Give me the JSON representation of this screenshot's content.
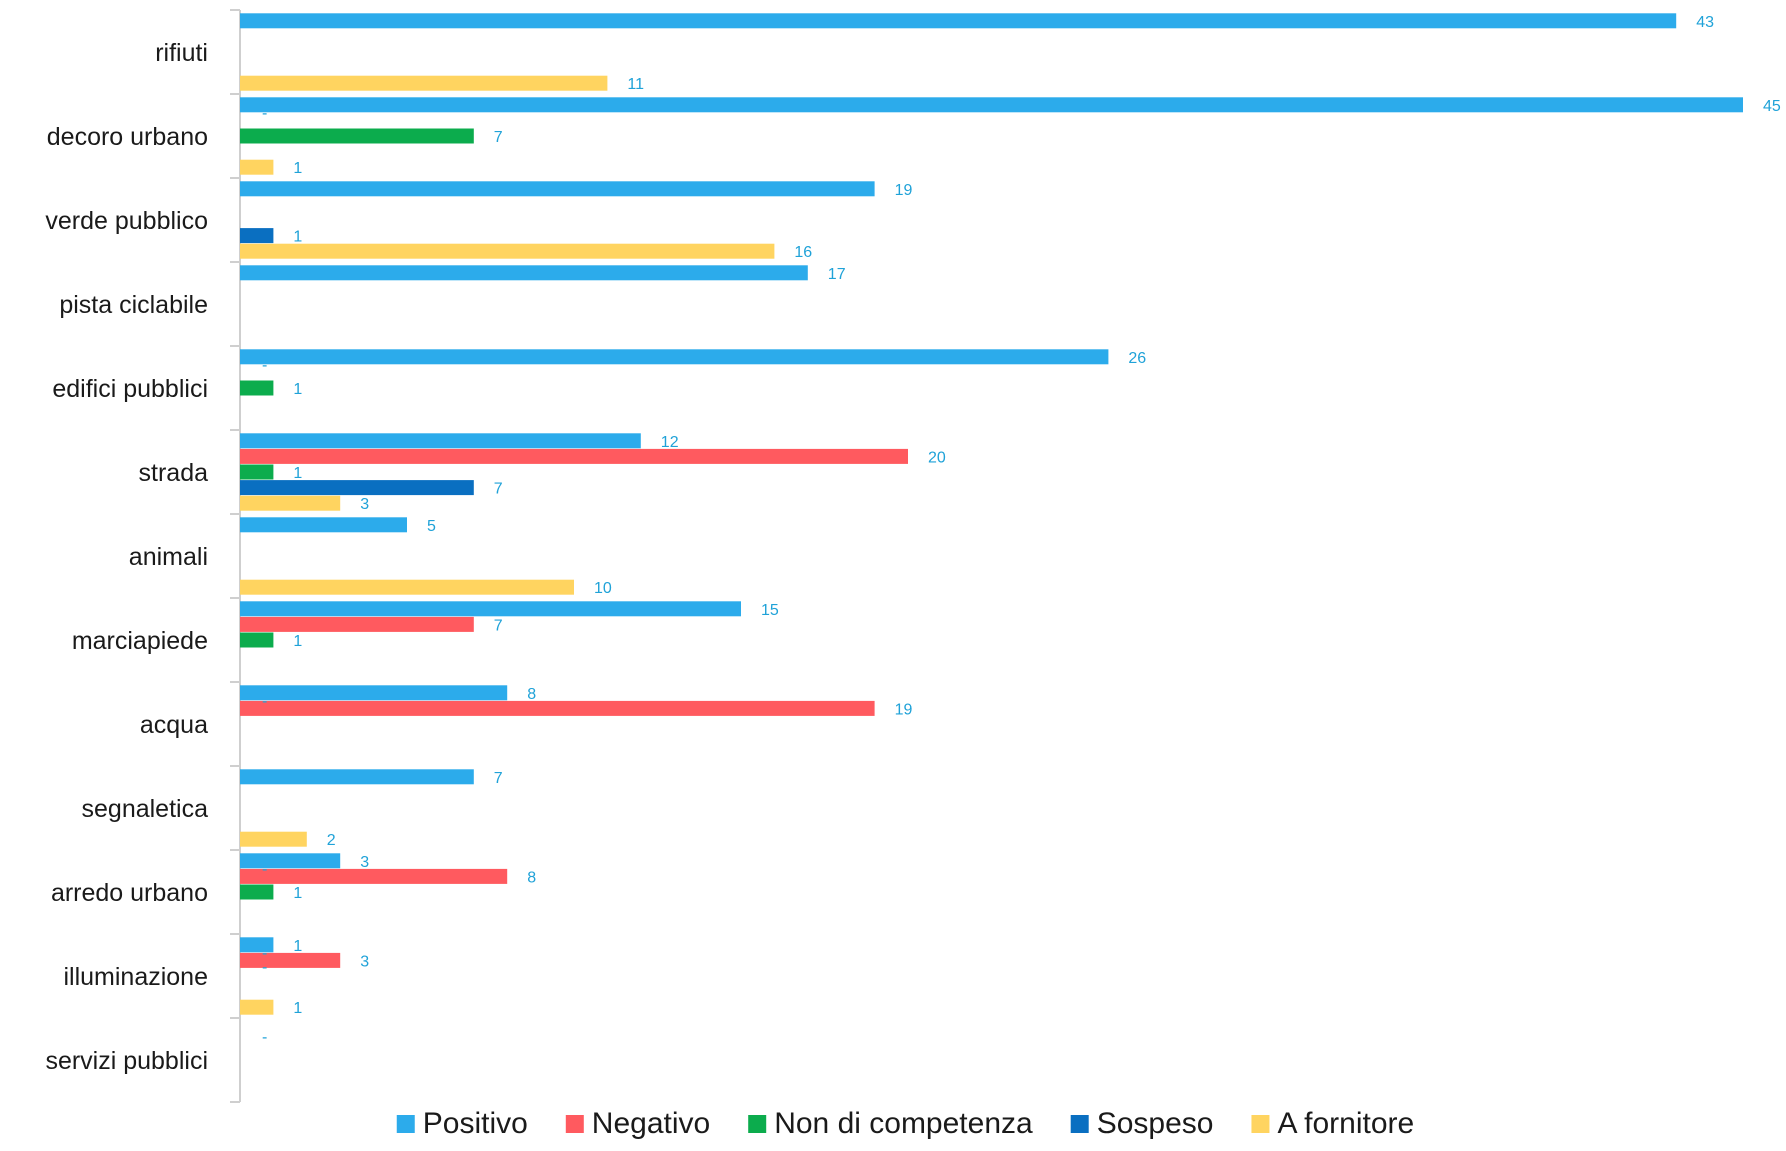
{
  "chart_data": {
    "type": "bar",
    "orientation": "horizontal",
    "title": "",
    "xlabel": "",
    "ylabel": "",
    "xlim": [
      0,
      45
    ],
    "grid": false,
    "legend_position": "bottom",
    "label_color": "#1fa2d8",
    "categories": [
      "rifiuti",
      "decoro urbano",
      "verde pubblico",
      "pista ciclabile",
      "edifici pubblici",
      "strada",
      "animali",
      "marciapiede",
      "acqua",
      "segnaletica",
      "arredo urbano",
      "illuminazione",
      "servizi pubblici"
    ],
    "series": [
      {
        "name": "Positivo",
        "color": "#2cabeb",
        "values": [
          43,
          45,
          19,
          17,
          26,
          12,
          5,
          15,
          8,
          7,
          3,
          1,
          null
        ],
        "labels": [
          "43",
          "45",
          "19",
          "17",
          "26",
          "12",
          "5",
          "15",
          "8",
          "7",
          "3",
          "1",
          ""
        ]
      },
      {
        "name": "Negativo",
        "color": "#ff5a5f",
        "values": [
          null,
          null,
          null,
          null,
          null,
          20,
          null,
          7,
          19,
          null,
          8,
          3,
          null
        ],
        "labels": [
          "",
          "",
          "",
          "",
          "",
          "20",
          "",
          "7",
          "19",
          "",
          "8",
          "3",
          ""
        ]
      },
      {
        "name": "Non di competenza",
        "color": "#0cac4d",
        "values": [
          null,
          7,
          null,
          null,
          1,
          1,
          null,
          1,
          null,
          null,
          1,
          null,
          null
        ],
        "labels": [
          "",
          "7",
          "",
          "",
          "1",
          "1",
          "",
          "1",
          "",
          "",
          "1",
          "",
          ""
        ]
      },
      {
        "name": "Sospeso",
        "color": "#0a6fc1",
        "values": [
          null,
          null,
          1,
          null,
          null,
          7,
          null,
          null,
          null,
          null,
          null,
          null,
          null
        ],
        "labels": [
          "",
          "",
          "1",
          "",
          "",
          "7",
          "",
          "",
          "",
          "",
          "",
          "",
          ""
        ]
      },
      {
        "name": "A fornitore",
        "color": "#ffd460",
        "values": [
          11,
          1,
          16,
          null,
          null,
          3,
          10,
          null,
          null,
          2,
          null,
          1,
          null
        ],
        "labels": [
          "11",
          "1",
          "16",
          "",
          "",
          "3",
          "10",
          "",
          "",
          "2",
          "",
          "1",
          ""
        ]
      }
    ],
    "dash_labels": [
      {
        "category": "decoro urbano",
        "text": "-"
      },
      {
        "category": "edifici pubblici",
        "text": "-"
      },
      {
        "category": "acqua",
        "text": "-"
      },
      {
        "category": "arredo urbano",
        "text": "-"
      },
      {
        "category": "illuminazione",
        "text": "-"
      },
      {
        "category": "illuminazione",
        "text": "-"
      },
      {
        "category": "servizi pubblici",
        "text": "-"
      }
    ]
  }
}
